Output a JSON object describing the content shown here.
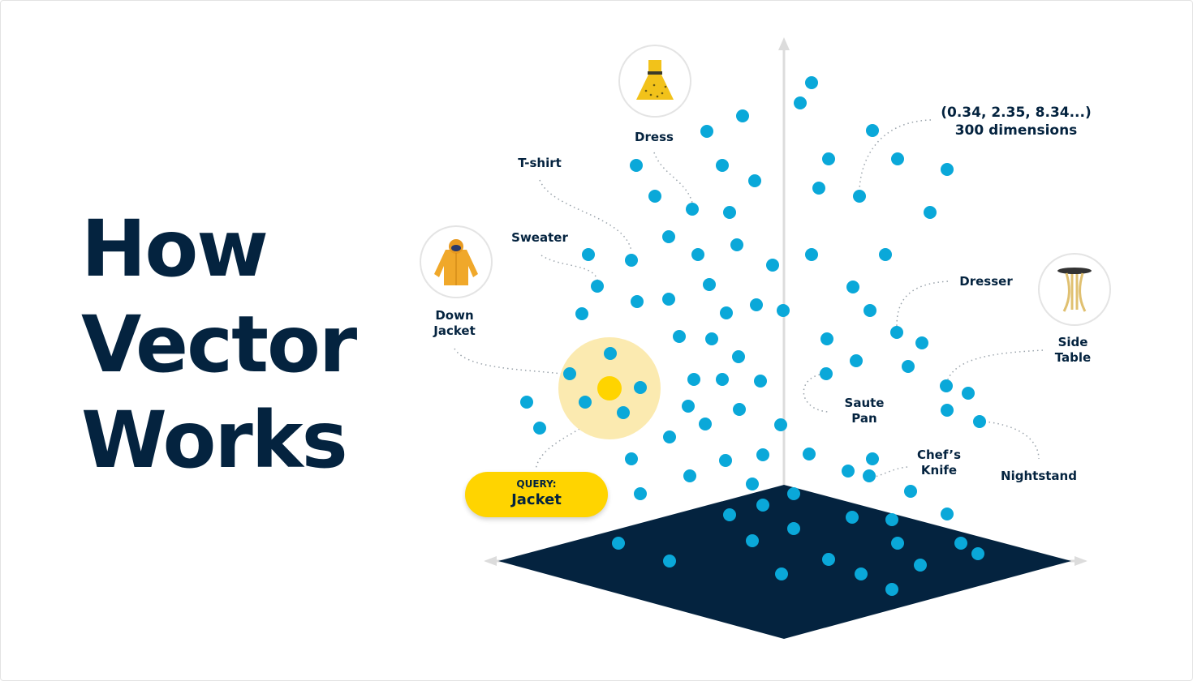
{
  "title": {
    "lines": [
      "How",
      "Vector",
      "Works"
    ]
  },
  "colors": {
    "navy": "#04233f",
    "dot": "#0aa8d9",
    "query": "#ffd400",
    "halo": "#fbeab0",
    "axis": "#d9d9d9"
  },
  "labels": {
    "dress": "Dress",
    "tshirt": "T-shirt",
    "sweater": "Sweater",
    "down_jacket": [
      "Down",
      "Jacket"
    ],
    "dresser": "Dresser",
    "side_table": [
      "Side",
      "Table"
    ],
    "saute_pan": [
      "Saute",
      "Pan"
    ],
    "chefs_knife": [
      "Chef’s",
      "Knife"
    ],
    "nightstand": "Nightstand"
  },
  "vector_annotation": {
    "values": "(0.34, 2.35, 8.34...)",
    "dimensions": "300 dimensions"
  },
  "query": {
    "label": "QUERY:",
    "value": "Jacket"
  },
  "icons": {
    "dress": "dress-image",
    "jacket": "down-jacket-image",
    "table": "side-table-image"
  }
}
